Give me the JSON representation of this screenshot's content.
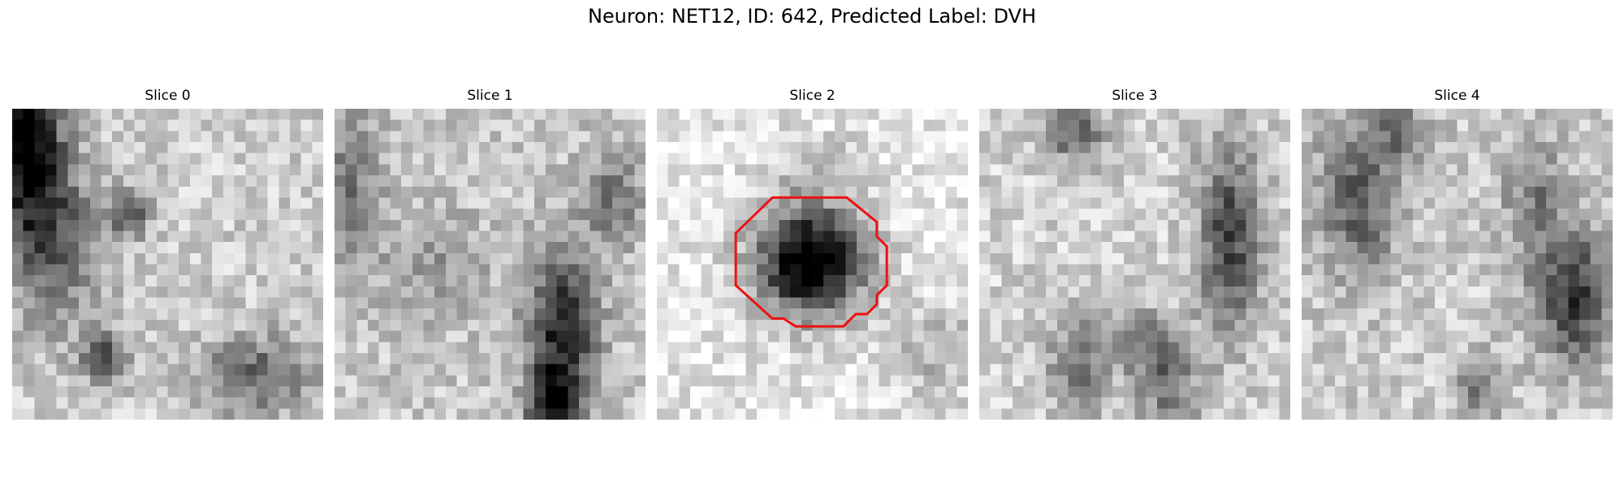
{
  "figure": {
    "title": "Neuron: NET12, ID: 642, Predicted Label: DVH"
  },
  "slices": [
    {
      "label": "Slice 0"
    },
    {
      "label": "Slice 1"
    },
    {
      "label": "Slice 2"
    },
    {
      "label": "Slice 3"
    },
    {
      "label": "Slice 4"
    }
  ],
  "colors": {
    "background": "#ffffff",
    "contour": "#ee1111"
  }
}
